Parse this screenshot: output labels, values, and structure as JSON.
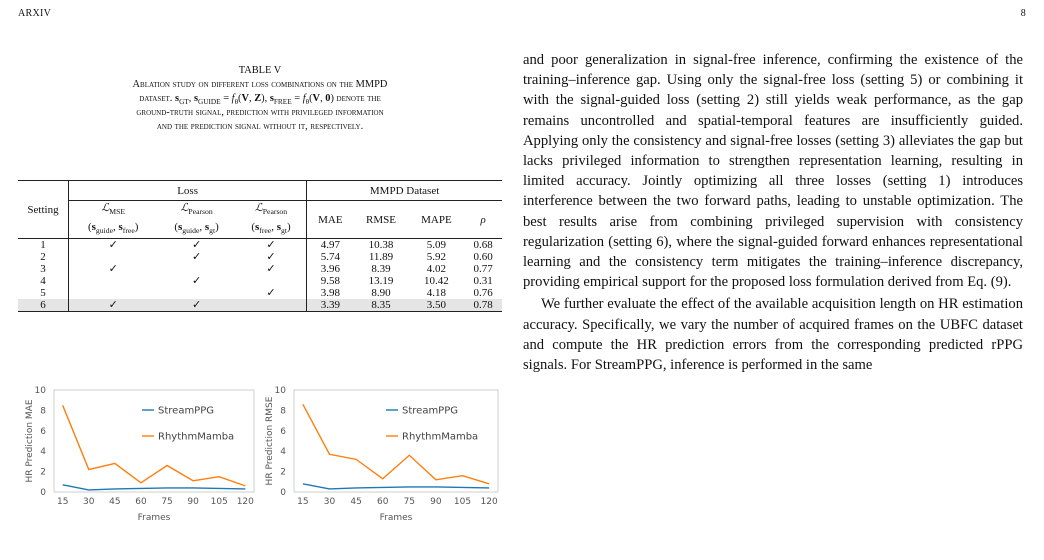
{
  "header": {
    "left": "ARXIV",
    "right": "8"
  },
  "table": {
    "number": "TABLE V",
    "caption_l1": "Ablation study on different loss combinations on the MMPD",
    "caption_l2a": "dataset.",
    "caption_l2b": "denote the",
    "caption_l3": "ground-truth signal, prediction with privileged information",
    "caption_l4": "and the prediction signal without it, respectively.",
    "col_setting": "Setting",
    "group_loss": "Loss",
    "group_dataset": "MMPD Dataset",
    "metrics": [
      "MAE",
      "RMSE",
      "MAPE",
      "ρ"
    ],
    "check": "✓",
    "rows": [
      {
        "setting": "1",
        "c1": true,
        "c2": true,
        "c3": true,
        "mae": "4.97",
        "rmse": "10.38",
        "mape": "5.09",
        "rho": "0.68"
      },
      {
        "setting": "2",
        "c1": false,
        "c2": true,
        "c3": true,
        "mae": "5.74",
        "rmse": "11.89",
        "mape": "5.92",
        "rho": "0.60"
      },
      {
        "setting": "3",
        "c1": true,
        "c2": false,
        "c3": true,
        "mae": "3.96",
        "rmse": "8.39",
        "mape": "4.02",
        "rho": "0.77"
      },
      {
        "setting": "4",
        "c1": false,
        "c2": true,
        "c3": false,
        "mae": "9.58",
        "rmse": "13.19",
        "mape": "10.42",
        "rho": "0.31"
      },
      {
        "setting": "5",
        "c1": false,
        "c2": false,
        "c3": true,
        "mae": "3.98",
        "rmse": "8.90",
        "mape": "4.18",
        "rho": "0.76"
      },
      {
        "setting": "6",
        "c1": true,
        "c2": true,
        "c3": false,
        "mae": "3.39",
        "rmse": "8.35",
        "mape": "3.50",
        "rho": "0.78"
      }
    ]
  },
  "chart_data": [
    {
      "type": "line",
      "ylabel": "HR Prediction MAE",
      "xlabel": "Frames",
      "x": [
        15,
        30,
        45,
        60,
        75,
        90,
        105,
        120
      ],
      "ylim": [
        0,
        10
      ],
      "yticks": [
        0,
        2,
        4,
        6,
        8,
        10
      ],
      "legend": "right",
      "series": [
        {
          "name": "StreamPPG",
          "color": "#1f77b4",
          "values": [
            0.7,
            0.2,
            0.3,
            0.35,
            0.4,
            0.4,
            0.35,
            0.3
          ]
        },
        {
          "name": "RhythmMamba",
          "color": "#ff7f0e",
          "values": [
            8.5,
            2.2,
            2.8,
            0.9,
            2.6,
            1.1,
            1.5,
            0.6
          ]
        }
      ]
    },
    {
      "type": "line",
      "ylabel": "HR Prediction RMSE",
      "xlabel": "Frames",
      "x": [
        15,
        30,
        45,
        60,
        75,
        90,
        105,
        120
      ],
      "ylim": [
        0,
        10
      ],
      "yticks": [
        0,
        2,
        4,
        6,
        8,
        10
      ],
      "legend": "right",
      "series": [
        {
          "name": "StreamPPG",
          "color": "#1f77b4",
          "values": [
            0.8,
            0.3,
            0.4,
            0.45,
            0.5,
            0.5,
            0.45,
            0.4
          ]
        },
        {
          "name": "RhythmMamba",
          "color": "#ff7f0e",
          "values": [
            8.6,
            3.7,
            3.2,
            1.3,
            3.6,
            1.2,
            1.6,
            0.8
          ]
        }
      ]
    }
  ],
  "body": {
    "p1": "and poor generalization in signal-free inference, confirming the existence of the training–inference gap. Using only the signal-free loss (setting 5) or combining it with the signal-guided loss (setting 2) still yields weak performance, as the gap remains uncontrolled and spatial-temporal features are insufficiently guided. Applying only the consistency and signal-free losses (setting 3) alleviates the gap but lacks privileged information to strengthen representation learning, resulting in limited accuracy. Jointly optimizing all three losses (setting 1) introduces interference between the two forward paths, leading to unstable optimization. The best results arise from combining privileged supervision with consistency regularization (setting 6), where the signal-guided forward enhances representational learning and the consistency term mitigates the training–inference discrepancy, providing empirical support for the proposed loss formulation derived from Eq. (9).",
    "p2": "We further evaluate the effect of the available acquisition length on HR estimation accuracy. Specifically, we vary the number of acquired frames on the UBFC dataset and compute the HR prediction errors from the corresponding predicted rPPG signals. For StreamPPG, inference is performed in the same"
  }
}
